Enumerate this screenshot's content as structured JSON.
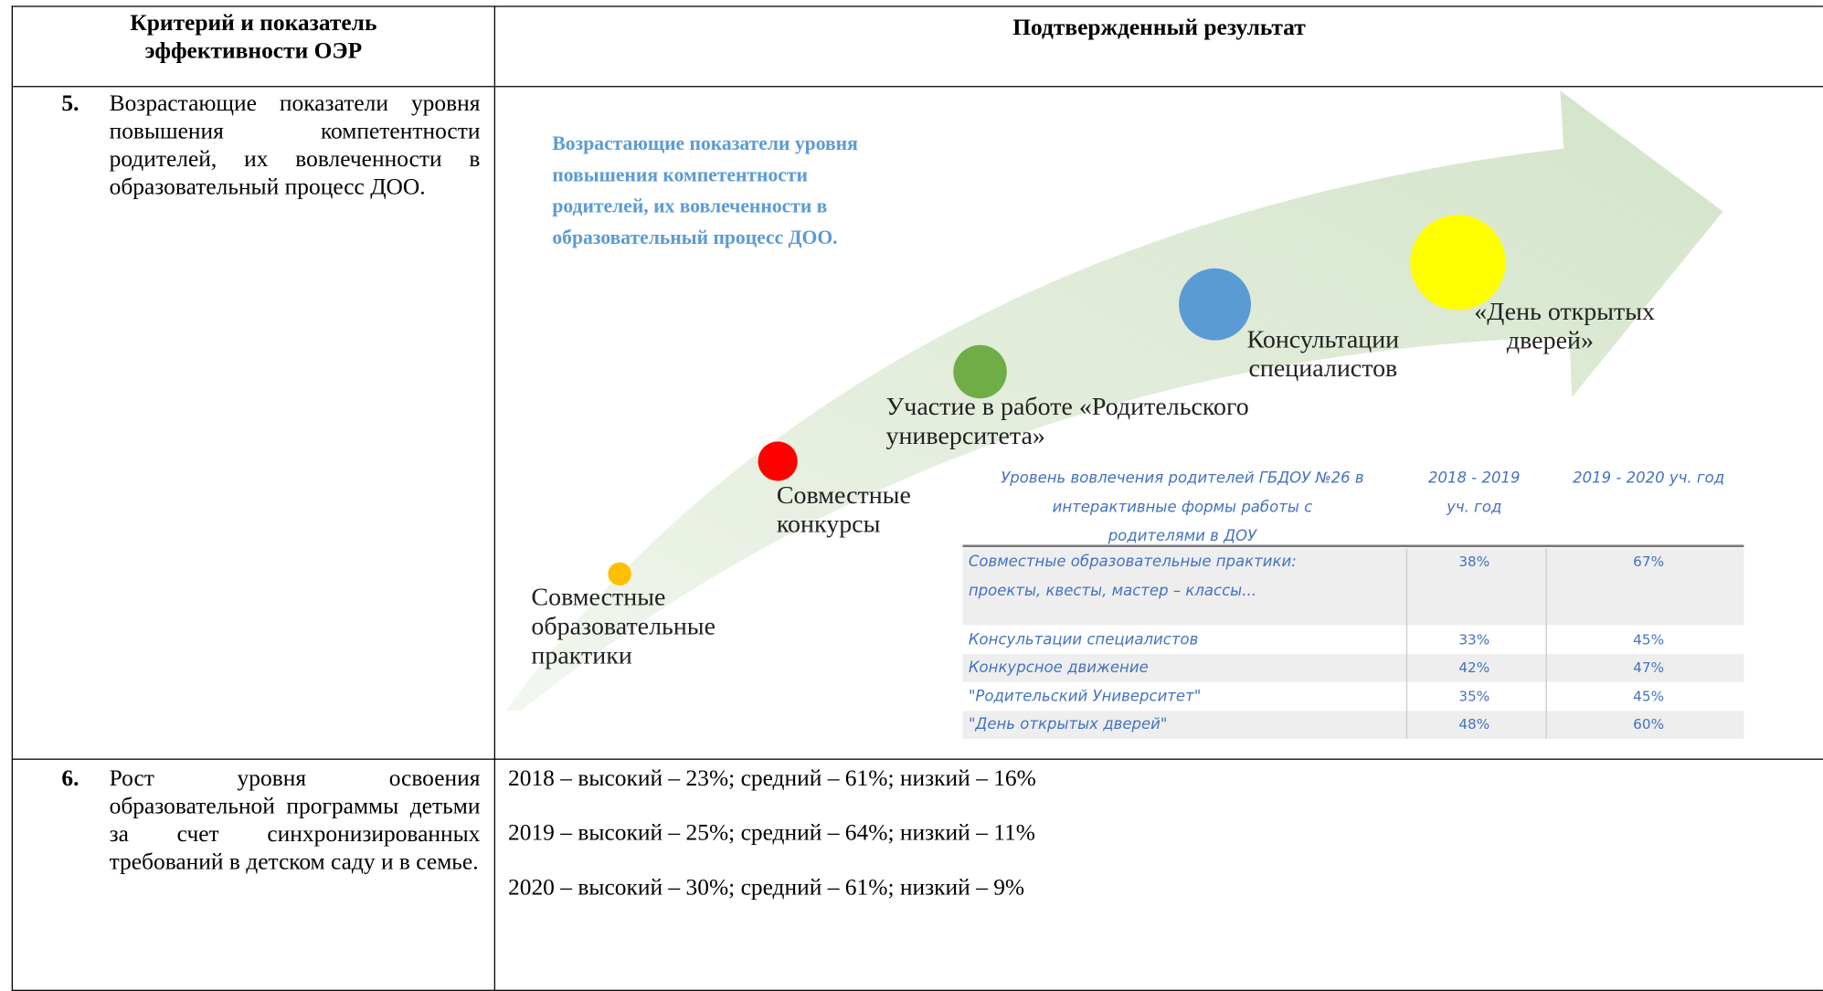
{
  "table": {
    "header": [
      "Критерий и показатель эффективности ОЭР",
      "Подтвержденный результат"
    ],
    "rows": [
      {
        "number": "5.",
        "criterion": "Возрастающие показатели уровня повышения компетентности родителей, их вовлеченности в образовательный процесс ДОО.",
        "infographic": {
          "title": [
            "Возрастающие показатели уровня",
            "повышения компетентности",
            "родителей, их вовлеченности в",
            "образовательный процесс ДОО."
          ],
          "steps": [
            {
              "label": [
                "Совместные",
                "образовательные",
                "практики"
              ]
            },
            {
              "label": [
                "Совместные",
                "конкурсы"
              ]
            },
            {
              "label": [
                "Участие в работе «Родительского",
                "университета»"
              ]
            },
            {
              "label": [
                "Консультации",
                "специалистов"
              ]
            },
            {
              "label": [
                "«День открытых",
                "дверей»"
              ]
            }
          ],
          "table": {
            "header": [
              [
                "Уровень вовлечения родителей ГБДОУ №26 в",
                "интерактивные формы работы с",
                "родителями в ДОУ"
              ],
              [
                "2018 - 2019",
                "уч. год"
              ],
              [
                "2019 - 2020 уч. год"
              ]
            ],
            "rows": [
              [
                [
                  "Совместные образовательные практики:",
                  "проекты, квесты, мастер – классы..."
                ],
                "38%",
                "67%"
              ],
              [
                [
                  "Консультации специалистов"
                ],
                "33%",
                "45%"
              ],
              [
                [
                  "Конкурсное движение"
                ],
                "42%",
                "47%"
              ],
              [
                [
                  "\"Родительский Университет\""
                ],
                "35%",
                "45%"
              ],
              [
                [
                  "\"День открытых дверей\""
                ],
                "48%",
                "60%"
              ]
            ]
          }
        }
      },
      {
        "number": "6.",
        "criterion": "Рост уровня освоения образовательной программы детьми за счет синхронизированных требований в детском саду и в семье.",
        "results": [
          "2018 – высокий – 23%; средний – 61%; низкий – 16%",
          "2019 – высокий – 25%; средний – 64%; низкий – 11%",
          "2020 – высокий – 30%; средний – 61%; низкий – 9%"
        ]
      }
    ]
  }
}
